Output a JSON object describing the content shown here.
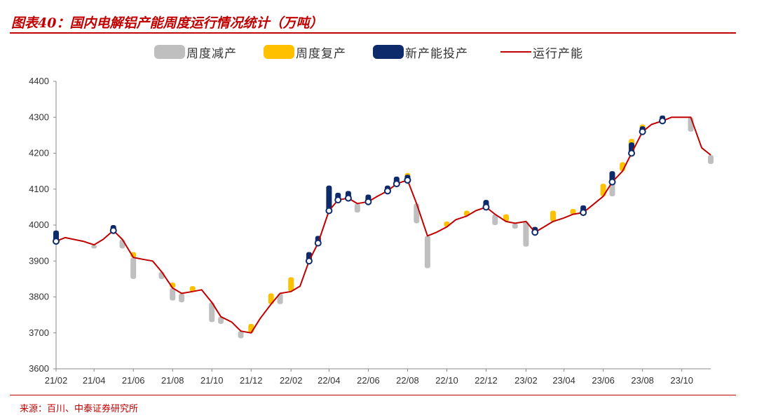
{
  "header": {
    "title": "图表40：国内电解铝产能周度运行情况统计（万吨）"
  },
  "footer": {
    "source": "来源：百川、中泰证券研究所"
  },
  "colors": {
    "reduction": "#bfbfbf",
    "resumption": "#ffc000",
    "new_capacity": "#0d2a6b",
    "operating": "#c00000",
    "accent": "#c00000"
  },
  "legend": [
    {
      "label": "周度减产",
      "color": "#bfbfbf",
      "kind": "bar"
    },
    {
      "label": "周度复产",
      "color": "#ffc000",
      "kind": "bar"
    },
    {
      "label": "新产能投产",
      "color": "#0d2a6b",
      "kind": "bar"
    },
    {
      "label": "运行产能",
      "color": "#c00000",
      "kind": "line"
    }
  ],
  "chart_data": {
    "type": "line",
    "x_tick_labels": [
      "21/02",
      "21/04",
      "21/06",
      "21/08",
      "21/10",
      "21/12",
      "22/02",
      "22/04",
      "22/06",
      "22/08",
      "22/10",
      "22/12",
      "23/02",
      "23/04",
      "23/06",
      "23/08",
      "23/10"
    ],
    "x_range": [
      "2021-02",
      "2023-11"
    ],
    "ylim": [
      3600,
      4400
    ],
    "y_ticks": [
      3600,
      3700,
      3800,
      3900,
      4000,
      4100,
      4200,
      4300,
      4400
    ],
    "grid": false,
    "legend_position": "top",
    "series": [
      {
        "name": "运行产能",
        "x": [
          "2021-02-01",
          "2021-02-15",
          "2021-03-01",
          "2021-03-15",
          "2021-04-01",
          "2021-04-15",
          "2021-05-01",
          "2021-05-15",
          "2021-06-01",
          "2021-06-15",
          "2021-07-01",
          "2021-07-15",
          "2021-08-01",
          "2021-08-15",
          "2021-09-01",
          "2021-09-15",
          "2021-10-01",
          "2021-10-15",
          "2021-11-01",
          "2021-11-15",
          "2021-12-01",
          "2021-12-15",
          "2022-01-01",
          "2022-01-15",
          "2022-02-01",
          "2022-02-15",
          "2022-03-01",
          "2022-03-15",
          "2022-04-01",
          "2022-04-15",
          "2022-05-01",
          "2022-05-15",
          "2022-06-01",
          "2022-06-15",
          "2022-07-01",
          "2022-07-15",
          "2022-08-01",
          "2022-08-15",
          "2022-09-01",
          "2022-09-15",
          "2022-10-01",
          "2022-10-15",
          "2022-11-01",
          "2022-11-15",
          "2022-12-01",
          "2022-12-15",
          "2023-01-01",
          "2023-01-15",
          "2023-02-01",
          "2023-02-15",
          "2023-03-01",
          "2023-03-15",
          "2023-04-01",
          "2023-04-15",
          "2023-05-01",
          "2023-05-15",
          "2023-06-01",
          "2023-06-15",
          "2023-07-01",
          "2023-07-15",
          "2023-08-01",
          "2023-08-15",
          "2023-09-01",
          "2023-09-15",
          "2023-10-01",
          "2023-10-15",
          "2023-11-01",
          "2023-11-15"
        ],
        "values": [
          3955,
          3965,
          3960,
          3955,
          3945,
          3960,
          3985,
          3960,
          3910,
          3905,
          3900,
          3870,
          3825,
          3810,
          3815,
          3820,
          3785,
          3745,
          3730,
          3705,
          3700,
          3740,
          3780,
          3810,
          3815,
          3830,
          3900,
          3950,
          4040,
          4070,
          4075,
          4060,
          4065,
          4080,
          4095,
          4115,
          4125,
          4060,
          3970,
          3980,
          3995,
          4015,
          4025,
          4040,
          4050,
          4030,
          4010,
          4005,
          4010,
          3980,
          3995,
          4010,
          4020,
          4030,
          4035,
          4055,
          4080,
          4120,
          4150,
          4200,
          4260,
          4280,
          4290,
          4300,
          4300,
          4300,
          4215,
          4195
        ]
      }
    ],
    "weekly_bars": [
      {
        "series": "周度减产",
        "x": [
          "2021-04-01",
          "2021-05-15",
          "2021-06-01",
          "2021-07-15",
          "2021-08-01",
          "2021-08-15",
          "2021-10-01",
          "2021-10-15",
          "2021-11-15",
          "2022-01-15",
          "2022-05-15",
          "2022-08-15",
          "2022-09-01",
          "2022-12-15",
          "2023-01-15",
          "2023-02-01",
          "2023-06-15",
          "2023-10-15",
          "2023-11-15"
        ],
        "values": [
          -10,
          -25,
          -60,
          -20,
          -35,
          -25,
          -55,
          -20,
          -20,
          -30,
          -25,
          -55,
          -90,
          -30,
          -15,
          -70,
          -40,
          -40,
          -25
        ]
      },
      {
        "series": "周度复产",
        "x": [
          "2021-06-01",
          "2021-08-01",
          "2021-09-01",
          "2021-12-01",
          "2022-01-01",
          "2022-02-01",
          "2022-03-01",
          "2022-04-01",
          "2022-06-01",
          "2022-08-01",
          "2022-10-01",
          "2022-11-01",
          "2023-01-01",
          "2023-02-15",
          "2023-03-15",
          "2023-04-15",
          "2023-06-01",
          "2023-07-01",
          "2023-07-15",
          "2023-08-01"
        ],
        "values": [
          15,
          15,
          15,
          25,
          30,
          40,
          25,
          35,
          15,
          20,
          15,
          15,
          20,
          15,
          30,
          15,
          35,
          25,
          40,
          20
        ]
      },
      {
        "series": "新产能投产",
        "x": [
          "2021-02-01",
          "2021-05-01",
          "2022-03-01",
          "2022-03-15",
          "2022-04-01",
          "2022-04-15",
          "2022-05-01",
          "2022-06-01",
          "2022-07-01",
          "2022-07-15",
          "2022-08-01",
          "2022-12-01",
          "2023-02-15",
          "2023-05-01",
          "2023-06-15",
          "2023-07-15",
          "2023-08-01",
          "2023-09-01"
        ],
        "values": [
          30,
          15,
          25,
          20,
          70,
          20,
          20,
          20,
          15,
          20,
          15,
          20,
          15,
          20,
          30,
          30,
          15,
          15
        ]
      }
    ]
  }
}
